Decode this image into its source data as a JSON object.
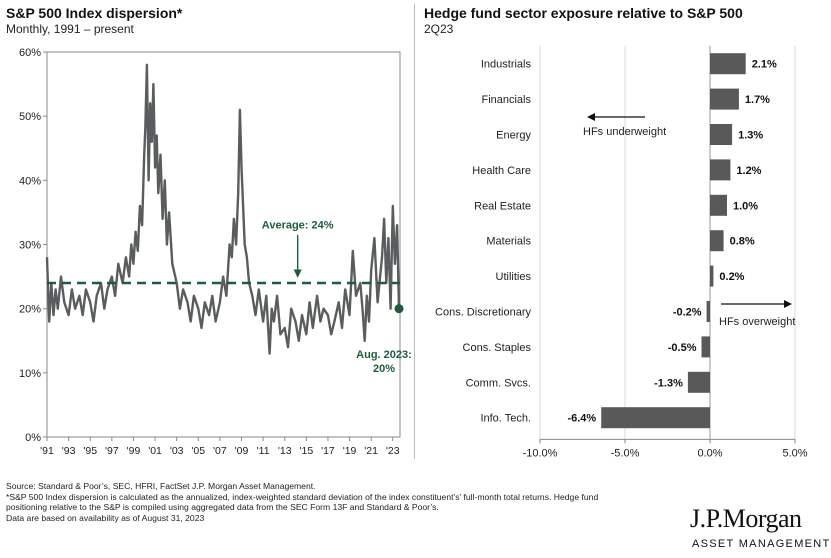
{
  "chart_data": [
    {
      "type": "line",
      "title": "S&P 500 Index dispersion*",
      "subtitle": "Monthly, 1991 – present",
      "ylim": [
        0,
        60
      ],
      "yticks": [
        0,
        10,
        20,
        30,
        40,
        50,
        60
      ],
      "ytick_labels": [
        "0%",
        "10%",
        "20%",
        "30%",
        "40%",
        "50%",
        "60%"
      ],
      "xlim": [
        1991,
        2023.67
      ],
      "xticks": [
        1991,
        1993,
        1995,
        1997,
        1999,
        2001,
        2003,
        2005,
        2007,
        2009,
        2011,
        2013,
        2015,
        2017,
        2019,
        2021,
        2023
      ],
      "xtick_labels": [
        "'91",
        "'93",
        "'95",
        "'97",
        "'99",
        "'01",
        "'03",
        "'05",
        "'07",
        "'09",
        "'11",
        "'13",
        "'15",
        "'17",
        "'19",
        "'21",
        "'23"
      ],
      "average": 24,
      "average_label": "Average: 24%",
      "latest": {
        "x": 2023.58,
        "y": 20
      },
      "latest_label_line1": "Aug. 2023:",
      "latest_label_line2": "20%",
      "series": [
        {
          "x": [
            1991.0,
            1991.2,
            1991.4,
            1991.6,
            1991.8,
            1992.0,
            1992.3,
            1992.6,
            1993.0,
            1993.3,
            1993.6,
            1994.0,
            1994.3,
            1994.6,
            1995.0,
            1995.3,
            1995.6,
            1996.0,
            1996.3,
            1996.6,
            1997.0,
            1997.3,
            1997.6,
            1998.0,
            1998.3,
            1998.6,
            1998.8,
            1999.0,
            1999.2,
            1999.4,
            1999.6,
            1999.8,
            2000.0,
            2000.1,
            2000.25,
            2000.4,
            2000.55,
            2000.7,
            2000.85,
            2001.0,
            2001.15,
            2001.3,
            2001.5,
            2001.7,
            2001.9,
            2002.1,
            2002.3,
            2002.6,
            2003.0,
            2003.3,
            2003.6,
            2004.0,
            2004.3,
            2004.6,
            2005.0,
            2005.3,
            2005.6,
            2006.0,
            2006.3,
            2006.6,
            2007.0,
            2007.3,
            2007.6,
            2007.9,
            2008.1,
            2008.3,
            2008.5,
            2008.7,
            2008.85,
            2009.0,
            2009.15,
            2009.3,
            2009.5,
            2009.7,
            2010.0,
            2010.3,
            2010.6,
            2011.0,
            2011.3,
            2011.6,
            2011.8,
            2012.0,
            2012.3,
            2012.6,
            2013.0,
            2013.3,
            2013.6,
            2014.0,
            2014.3,
            2014.6,
            2015.0,
            2015.3,
            2015.6,
            2016.0,
            2016.3,
            2016.6,
            2017.0,
            2017.3,
            2017.6,
            2018.0,
            2018.3,
            2018.6,
            2019.0,
            2019.3,
            2019.6,
            2020.0,
            2020.2,
            2020.4,
            2020.6,
            2020.8,
            2021.0,
            2021.3,
            2021.6,
            2022.0,
            2022.2,
            2022.4,
            2022.6,
            2022.8,
            2023.0,
            2023.2,
            2023.4,
            2023.58
          ],
          "y": [
            28,
            18,
            24,
            19,
            23,
            20,
            25,
            21,
            19,
            23,
            20,
            22,
            19,
            23,
            21,
            18,
            22,
            24,
            20,
            23,
            25,
            22,
            27,
            24,
            28,
            25,
            30,
            27,
            32,
            29,
            36,
            33,
            44,
            48,
            58,
            40,
            52,
            46,
            55,
            42,
            47,
            38,
            44,
            34,
            40,
            30,
            35,
            27,
            24,
            20,
            23,
            21,
            18,
            22,
            20,
            17,
            21,
            19,
            22,
            18,
            21,
            25,
            22,
            30,
            28,
            34,
            30,
            38,
            51,
            42,
            36,
            30,
            28,
            24,
            22,
            19,
            23,
            18,
            22,
            13,
            20,
            18,
            22,
            16,
            17,
            14,
            20,
            18,
            15,
            19,
            16,
            21,
            17,
            22,
            18,
            20,
            19,
            16,
            18,
            21,
            17,
            23,
            19,
            29,
            22,
            24,
            20,
            15,
            22,
            18,
            26,
            31,
            21,
            28,
            34,
            24,
            31,
            20,
            36,
            27,
            33,
            20
          ]
        }
      ]
    },
    {
      "type": "bar",
      "orientation": "horizontal",
      "title": "Hedge fund sector exposure relative to S&P 500",
      "subtitle": "2Q23",
      "xlim": [
        -10,
        5
      ],
      "xticks": [
        -10,
        -5,
        0,
        5
      ],
      "xtick_labels": [
        "-10.0%",
        "-5.0%",
        "0.0%",
        "5.0%"
      ],
      "categories": [
        "Industrials",
        "Financials",
        "Energy",
        "Health Care",
        "Real Estate",
        "Materials",
        "Utilities",
        "Cons. Discretionary",
        "Cons. Staples",
        "Comm. Svcs.",
        "Info. Tech."
      ],
      "values": [
        2.1,
        1.7,
        1.3,
        1.2,
        1.0,
        0.8,
        0.2,
        -0.2,
        -0.5,
        -1.3,
        -6.4
      ],
      "value_labels": [
        "2.1%",
        "1.7%",
        "1.3%",
        "1.2%",
        "1.0%",
        "0.8%",
        "0.2%",
        "-0.2%",
        "-0.5%",
        "-1.3%",
        "-6.4%"
      ],
      "annotations": {
        "underweight": "HFs underweight",
        "overweight": "HFs overweight"
      }
    }
  ],
  "colors": {
    "line": "#5a5d5e",
    "bar": "#595959",
    "average": "#1f5c3a",
    "axis": "#8a8a8a",
    "grid": "#d9d9d9"
  },
  "footer": {
    "line1": "Source: Standard & Poor’s, SEC, HFRI, FactSet J.P. Morgan Asset Management.",
    "line2": "*S&P 500 Index dispersion is calculated as the annualized, index-weighted standard deviation of the index constituent’s’ full-month total returns. Hedge fund",
    "line3": "positioning relative to the S&P is compiled using aggregated data from the SEC Form 13F and Standard & Poor’s.",
    "line4": "Data are based on availability as of August 31, 2023"
  },
  "logo": {
    "main": "J.P.Morgan",
    "sub": "ASSET MANAGEMENT"
  }
}
